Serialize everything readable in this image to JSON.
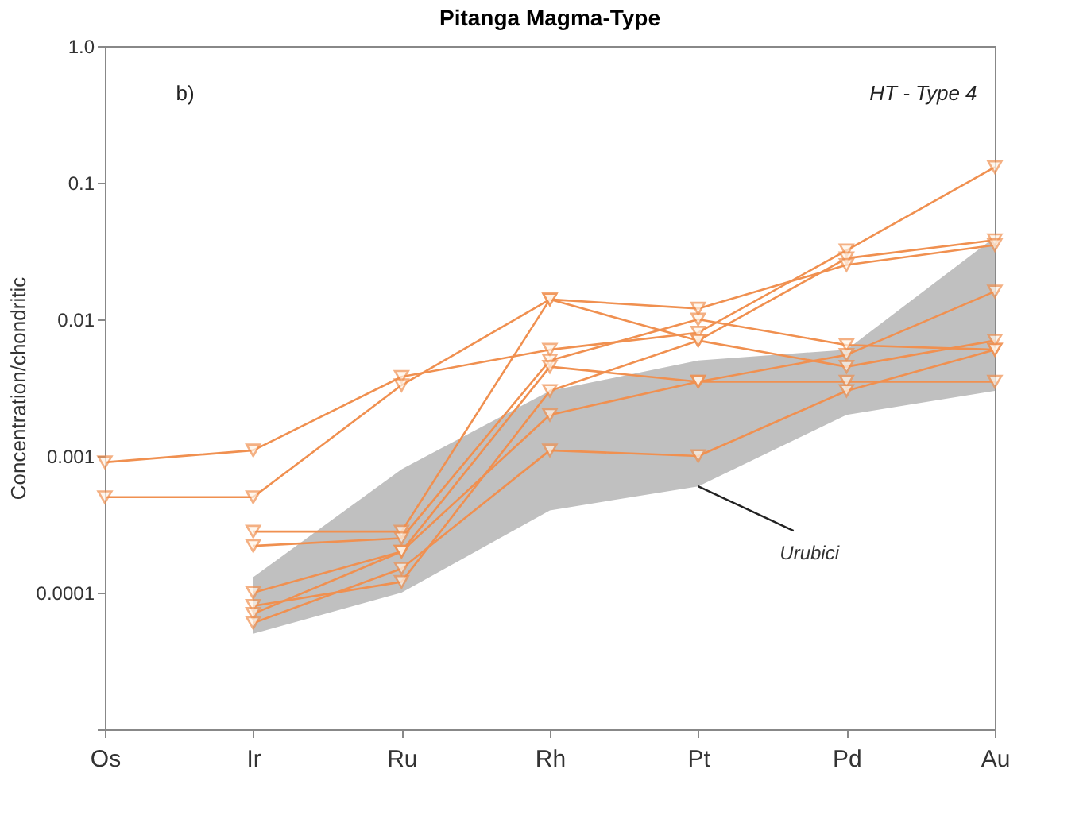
{
  "chart_data": {
    "type": "line",
    "title": "Pitanga Magma-Type",
    "ylabel": "Concentration/chondritic",
    "annotations": [
      "b)",
      "HT - Type 4",
      {
        "text": "Urubici",
        "x": "Pt",
        "y": 0.0006
      }
    ],
    "categories": [
      "Os",
      "Ir",
      "Ru",
      "Rh",
      "Pt",
      "Pd",
      "Au"
    ],
    "log": "y",
    "ylim": [
      1e-05,
      1
    ],
    "yticks": [
      {
        "value": 1e-05,
        "label": null
      },
      0.0001,
      0.001,
      0.01,
      0.1,
      {
        "value": 1,
        "label": "1.0"
      }
    ],
    "grid": false,
    "legend": false,
    "marker": "triangle",
    "line_style": "solid",
    "series": [
      {
        "type": "area",
        "color": "#c0c0c0",
        "values": [
          null,
          null,
          null,
          null,
          null,
          null,
          null
        ],
        "lower": [
          null,
          5e-05,
          0.0001,
          0.0004,
          0.0006,
          0.002,
          0.003
        ],
        "upper": [
          null,
          0.00013,
          0.0008,
          0.003,
          0.005,
          0.006,
          0.04
        ]
      },
      {
        "color": "#f09050",
        "values": [
          0.0009,
          0.0011,
          0.0038,
          0.006,
          0.008,
          0.032,
          0.13
        ]
      },
      {
        "color": "#f09050",
        "values": [
          0.0005,
          0.0005,
          0.0033,
          0.014,
          0.007,
          0.028,
          0.038
        ]
      },
      {
        "color": "#f09050",
        "values": [
          null,
          0.00028,
          0.00028,
          0.014,
          0.012,
          0.025,
          0.035
        ]
      },
      {
        "color": "#f09050",
        "values": [
          null,
          0.00022,
          0.00025,
          0.005,
          0.01,
          0.0065,
          0.006
        ]
      },
      {
        "color": "#f09050",
        "values": [
          null,
          0.0001,
          0.0002,
          0.0045,
          0.0035,
          0.0055,
          0.016
        ]
      },
      {
        "color": "#f09050",
        "values": [
          null,
          8e-05,
          0.00012,
          0.003,
          0.007,
          0.0045,
          0.007
        ]
      },
      {
        "color": "#f09050",
        "values": [
          null,
          7e-05,
          0.0002,
          0.002,
          0.0035,
          0.0035,
          0.0035
        ]
      },
      {
        "color": "#f09050",
        "values": [
          null,
          6e-05,
          0.00015,
          0.0011,
          0.001,
          0.003,
          0.006
        ]
      }
    ]
  }
}
